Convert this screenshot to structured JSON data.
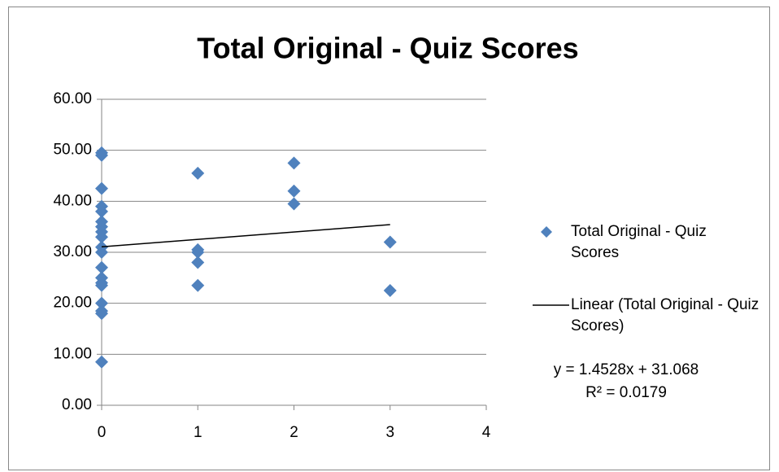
{
  "chart_data": {
    "type": "scatter",
    "title": "Total Original - Quiz Scores",
    "x": [
      0,
      0,
      0,
      0,
      0,
      0,
      0,
      0,
      0,
      0,
      0,
      0,
      0,
      0,
      0,
      0,
      0,
      0,
      0,
      1,
      1,
      1,
      1,
      1,
      2,
      2,
      2,
      3,
      3
    ],
    "series": [
      {
        "name": "Total Original - Quiz Scores",
        "color": "#4f81bd",
        "values": [
          49.5,
          49,
          42.5,
          39,
          38,
          36,
          35,
          34,
          33,
          31,
          30,
          27,
          25,
          24,
          23.5,
          20,
          18.5,
          18,
          8.5,
          45.5,
          30.5,
          30,
          28,
          23.5,
          47.5,
          42,
          39.5,
          32,
          22.5
        ]
      }
    ],
    "trendline": {
      "name": "Linear (Total Original - Quiz Scores)",
      "slope": 1.4528,
      "intercept": 31.068,
      "color": "#000000",
      "equation": "y = 1.4528x + 31.068",
      "r2": "R² = 0.0179"
    },
    "xlim": [
      0,
      4
    ],
    "xticks": [
      0,
      1,
      2,
      3,
      4
    ],
    "ylim": [
      0,
      60
    ],
    "yticks": [
      {
        "value": 0,
        "label": "0.00"
      },
      {
        "value": 10,
        "label": "10.00"
      },
      {
        "value": 20,
        "label": "20.00"
      },
      {
        "value": 30,
        "label": "30.00"
      },
      {
        "value": 40,
        "label": "40.00"
      },
      {
        "value": 50,
        "label": "50.00"
      },
      {
        "value": 60,
        "label": "60.00"
      }
    ],
    "grid": true,
    "legend": "right"
  }
}
